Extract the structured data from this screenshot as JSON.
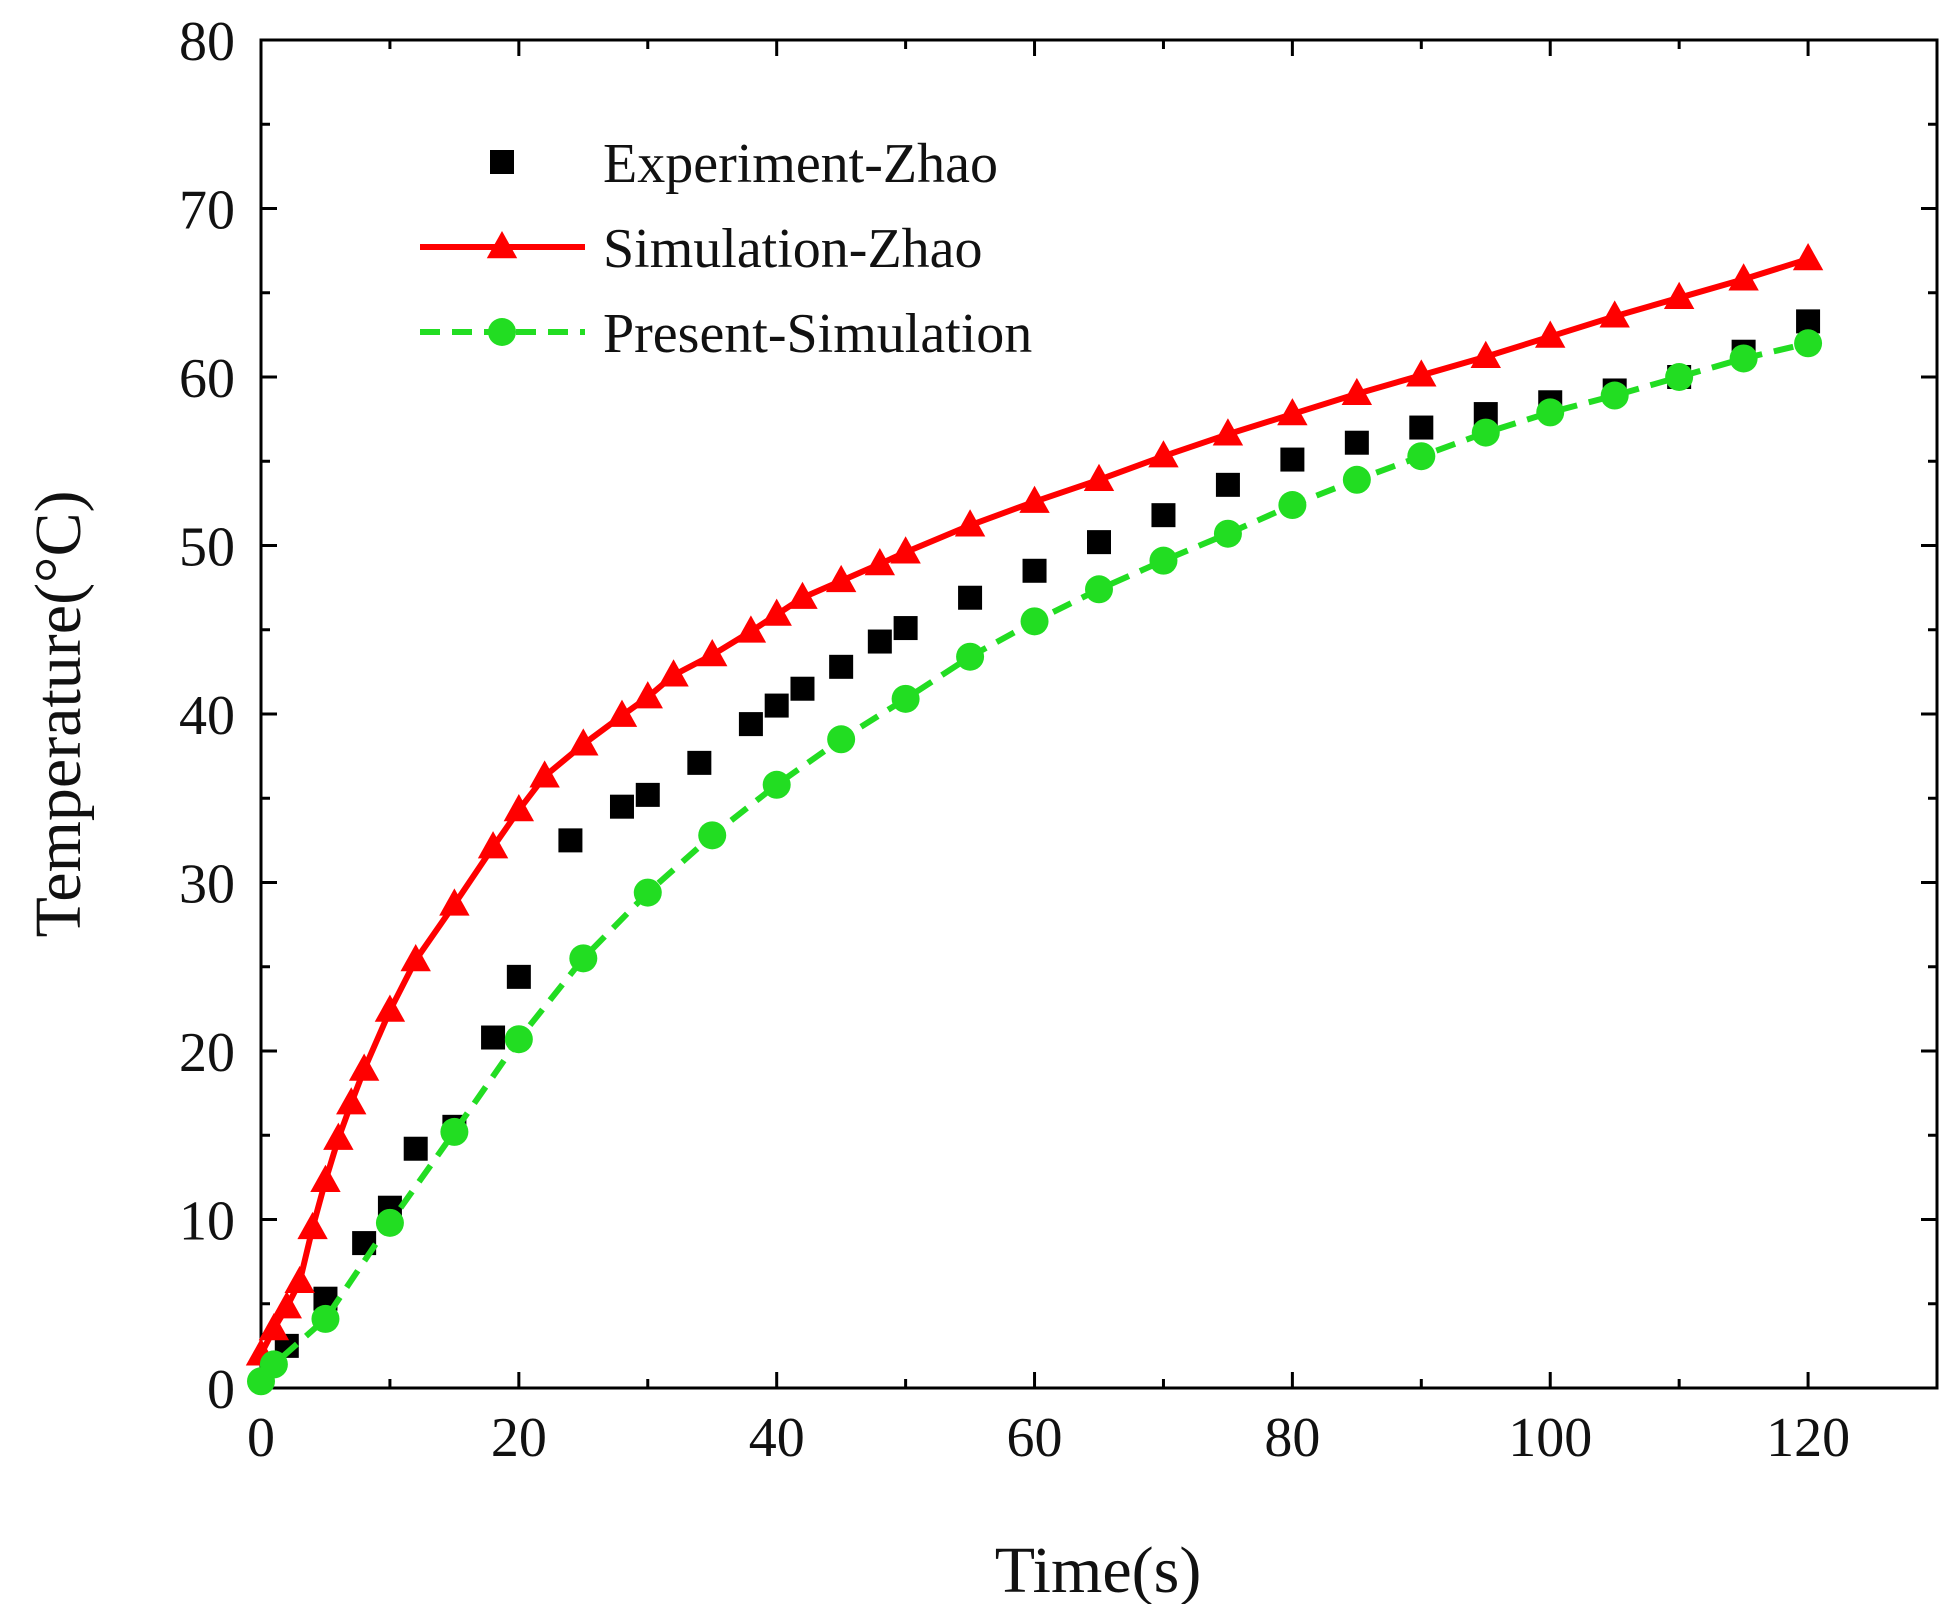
{
  "chart_data": {
    "type": "scatter",
    "title": "",
    "xlabel": "Time(s)",
    "ylabel": "Temperature(°C)",
    "xlim": [
      0,
      130
    ],
    "ylim": [
      0,
      80
    ],
    "xticks": [
      0,
      20,
      40,
      60,
      80,
      100,
      120
    ],
    "yticks": [
      0,
      10,
      20,
      30,
      40,
      50,
      60,
      70,
      80
    ],
    "grid": false,
    "legend": {
      "placement": "top-left"
    },
    "series": [
      {
        "name": "Experiment-Zhao",
        "mark": "square",
        "color": "#000000",
        "line": "none",
        "x": [
          2,
          5,
          8,
          10,
          12,
          15,
          18,
          20,
          24,
          28,
          30,
          34,
          38,
          40,
          42,
          45,
          48,
          50,
          55,
          60,
          65,
          70,
          75,
          80,
          85,
          90,
          95,
          100,
          105,
          110,
          115,
          120
        ],
        "y": [
          2.5,
          5.3,
          8.6,
          10.7,
          14.2,
          15.5,
          20.8,
          24.4,
          32.5,
          34.5,
          35.2,
          37.1,
          39.4,
          40.5,
          41.5,
          42.8,
          44.3,
          45.1,
          46.9,
          48.5,
          50.2,
          51.8,
          53.6,
          55.1,
          56.1,
          57.0,
          57.8,
          58.5,
          59.2,
          60.0,
          61.5,
          63.3
        ]
      },
      {
        "name": "Simulation-Zhao",
        "mark": "triangle",
        "color": "#ff0000",
        "line": "solid",
        "x": [
          0,
          1,
          2,
          3,
          4,
          5,
          6,
          7,
          8,
          10,
          12,
          15,
          18,
          20,
          22,
          25,
          28,
          30,
          32,
          35,
          38,
          40,
          42,
          45,
          48,
          50,
          55,
          60,
          65,
          70,
          75,
          80,
          85,
          90,
          95,
          100,
          105,
          110,
          115,
          120
        ],
        "y": [
          2.0,
          3.5,
          4.8,
          6.3,
          9.5,
          12.3,
          14.8,
          16.9,
          18.9,
          22.4,
          25.4,
          28.7,
          32.1,
          34.3,
          36.3,
          38.2,
          39.9,
          41.0,
          42.3,
          43.5,
          44.9,
          45.9,
          46.9,
          47.9,
          48.9,
          49.6,
          51.2,
          52.6,
          53.9,
          55.3,
          56.6,
          57.8,
          59.0,
          60.1,
          61.2,
          62.4,
          63.6,
          64.7,
          65.8,
          67.0
        ]
      },
      {
        "name": "Present-Simulation",
        "mark": "circle",
        "color": "#22dd22",
        "line": "dashed",
        "x": [
          0,
          1,
          5,
          10,
          15,
          20,
          25,
          30,
          35,
          40,
          45,
          50,
          55,
          60,
          65,
          70,
          75,
          80,
          85,
          90,
          95,
          100,
          105,
          110,
          115,
          120
        ],
        "y": [
          0.4,
          1.4,
          4.1,
          9.8,
          15.2,
          20.7,
          25.5,
          29.4,
          32.8,
          35.8,
          38.5,
          40.9,
          43.4,
          45.5,
          47.4,
          49.1,
          50.7,
          52.4,
          53.9,
          55.3,
          56.7,
          57.9,
          58.9,
          60.0,
          61.1,
          62.0
        ]
      }
    ]
  }
}
